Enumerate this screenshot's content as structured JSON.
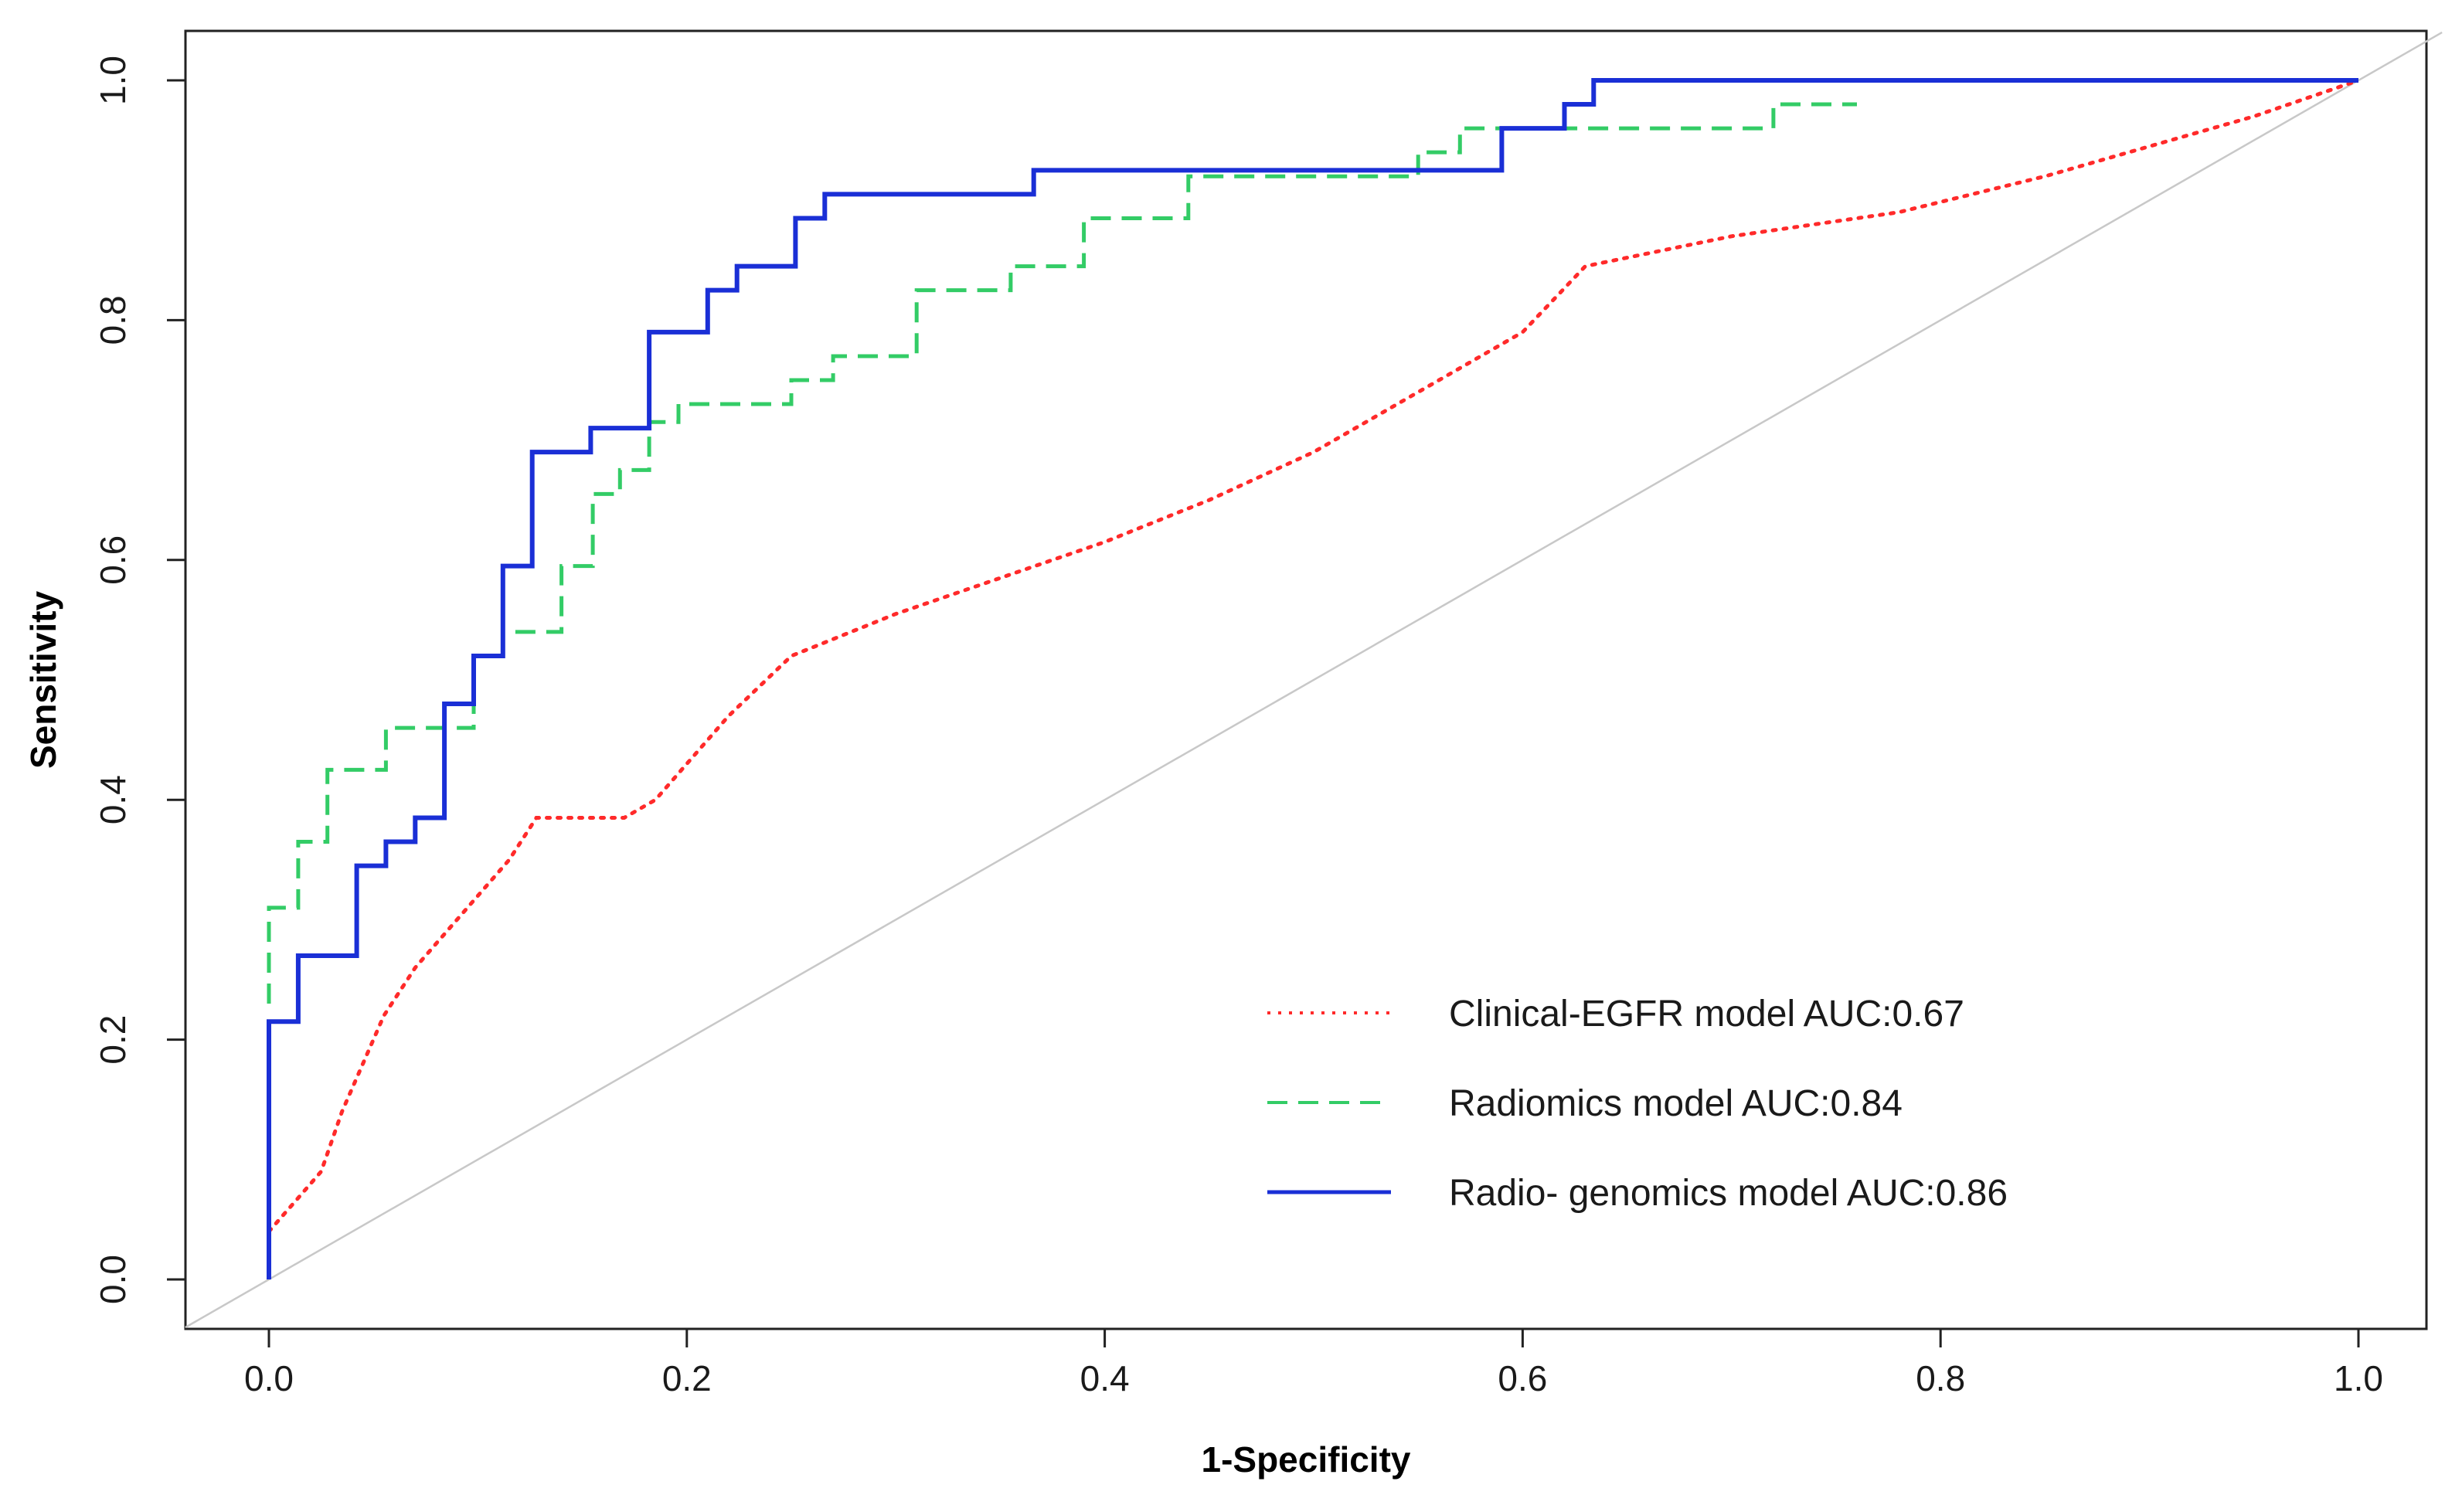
{
  "chart_data": {
    "type": "line",
    "title": "",
    "xlabel": "1-Specificity",
    "ylabel": "Sensitivity",
    "xlim": [
      0,
      1
    ],
    "ylim": [
      0,
      1
    ],
    "xticks": [
      "0.0",
      "0.2",
      "0.4",
      "0.6",
      "0.8",
      "1.0"
    ],
    "yticks": [
      "0.0",
      "0.2",
      "0.4",
      "0.6",
      "0.8",
      "1.0"
    ],
    "grid": false,
    "legend_position": "bottom-right",
    "reference_line": {
      "x": [
        0,
        1
      ],
      "y": [
        0,
        1
      ],
      "color": "#c8c8c8"
    },
    "series": [
      {
        "name": "Clinical-EGFR model AUC:0.67",
        "color": "#ff2a2a",
        "style": "dotted",
        "x": [
          0,
          0.005,
          0.015,
          0.025,
          0.035,
          0.045,
          0.055,
          0.07,
          0.085,
          0.1,
          0.115,
          0.128,
          0.15,
          0.17,
          0.185,
          0.2,
          0.22,
          0.25,
          0.3,
          0.35,
          0.4,
          0.45,
          0.5,
          0.55,
          0.6,
          0.63,
          0.7,
          0.78,
          0.85,
          0.9,
          0.95,
          1.0
        ],
        "y": [
          0.04,
          0.05,
          0.07,
          0.09,
          0.14,
          0.18,
          0.22,
          0.26,
          0.29,
          0.32,
          0.35,
          0.385,
          0.385,
          0.385,
          0.4,
          0.43,
          0.47,
          0.52,
          0.555,
          0.585,
          0.615,
          0.65,
          0.69,
          0.74,
          0.79,
          0.845,
          0.87,
          0.89,
          0.92,
          0.945,
          0.97,
          1.0
        ]
      },
      {
        "name": "Radiomics model AUC:0.84",
        "color": "#33cc66",
        "style": "dashed",
        "x": [
          0,
          0,
          0.014,
          0.014,
          0.028,
          0.028,
          0.056,
          0.056,
          0.098,
          0.098,
          0.112,
          0.112,
          0.14,
          0.14,
          0.155,
          0.155,
          0.168,
          0.168,
          0.182,
          0.182,
          0.196,
          0.196,
          0.25,
          0.25,
          0.27,
          0.27,
          0.31,
          0.31,
          0.355,
          0.355,
          0.39,
          0.39,
          0.44,
          0.44,
          0.55,
          0.55,
          0.57,
          0.57,
          0.72,
          0.72,
          0.76
        ],
        "y": [
          0.23,
          0.31,
          0.31,
          0.365,
          0.365,
          0.425,
          0.425,
          0.46,
          0.46,
          0.52,
          0.52,
          0.54,
          0.54,
          0.595,
          0.595,
          0.655,
          0.655,
          0.675,
          0.675,
          0.715,
          0.715,
          0.73,
          0.73,
          0.75,
          0.75,
          0.77,
          0.77,
          0.825,
          0.825,
          0.845,
          0.845,
          0.885,
          0.885,
          0.92,
          0.92,
          0.94,
          0.94,
          0.96,
          0.96,
          0.98,
          0.98
        ]
      },
      {
        "name": "Radio- genomics model AUC:0.86",
        "color": "#1a2fd6",
        "style": "solid",
        "x": [
          0,
          0,
          0.014,
          0.014,
          0.042,
          0.042,
          0.056,
          0.056,
          0.07,
          0.07,
          0.084,
          0.084,
          0.098,
          0.098,
          0.112,
          0.112,
          0.126,
          0.126,
          0.154,
          0.154,
          0.182,
          0.182,
          0.21,
          0.21,
          0.224,
          0.224,
          0.252,
          0.252,
          0.266,
          0.266,
          0.366,
          0.366,
          0.59,
          0.59,
          0.62,
          0.62,
          0.634,
          0.634,
          1.0
        ],
        "y": [
          0,
          0.215,
          0.215,
          0.27,
          0.27,
          0.345,
          0.345,
          0.365,
          0.365,
          0.385,
          0.385,
          0.48,
          0.48,
          0.52,
          0.52,
          0.595,
          0.595,
          0.69,
          0.69,
          0.71,
          0.71,
          0.79,
          0.79,
          0.825,
          0.825,
          0.845,
          0.845,
          0.885,
          0.885,
          0.905,
          0.905,
          0.925,
          0.925,
          0.96,
          0.96,
          0.98,
          0.98,
          1.0,
          1.0
        ]
      }
    ]
  }
}
